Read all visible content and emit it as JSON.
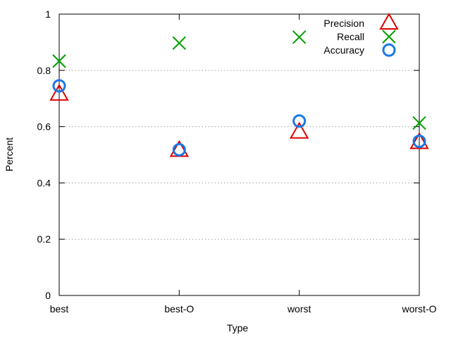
{
  "chart_data": {
    "type": "scatter",
    "title": "",
    "xlabel": "Type",
    "ylabel": "Percent",
    "categories": [
      "best",
      "best-O",
      "worst",
      "worst-O"
    ],
    "ylim": [
      0,
      1
    ],
    "y_ticks": [
      "0",
      "0.2",
      "0.4",
      "0.6",
      "0.8",
      "1"
    ],
    "grid": "horizontal dotted",
    "legend_position": "top-right",
    "series": [
      {
        "name": "Precision",
        "marker": "triangle",
        "color": "#dd0000",
        "values": [
          0.715,
          0.515,
          0.58,
          0.543
        ]
      },
      {
        "name": "Recall",
        "marker": "cross",
        "color": "#00a000",
        "values": [
          0.833,
          0.897,
          0.918,
          0.613
        ]
      },
      {
        "name": "Accuracy",
        "marker": "circle",
        "color": "#1a78e6",
        "values": [
          0.745,
          0.518,
          0.62,
          0.548
        ]
      }
    ]
  }
}
